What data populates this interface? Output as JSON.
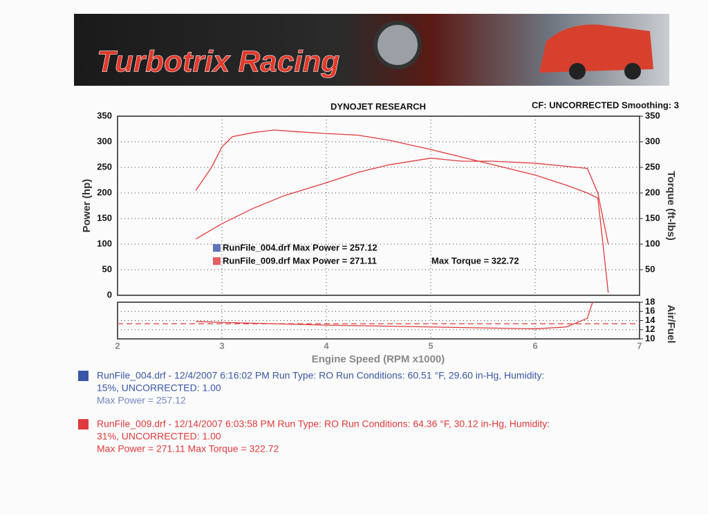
{
  "banner": {
    "title": "Turbotrix Racing"
  },
  "chart_data": [
    {
      "type": "line",
      "title": "DYNOJET RESEARCH",
      "subtitle": "CF: UNCORRECTED  Smoothing: 3",
      "ylabel": "Power (hp)",
      "y2label": "Torque (ft-lbs)",
      "xlim": [
        2,
        7
      ],
      "xticks": [
        2,
        3,
        4,
        5,
        6,
        7
      ],
      "ylim": [
        0,
        350
      ],
      "yticks": [
        0,
        50,
        100,
        150,
        200,
        250,
        300,
        350
      ],
      "y2lim": [
        0,
        350
      ],
      "y2ticks": [
        50,
        100,
        150,
        200,
        250,
        300,
        350
      ],
      "grid": true,
      "series": [
        {
          "color": "#e0393b",
          "x": [
            2.75,
            3.0,
            3.3,
            3.6,
            4.0,
            4.3,
            4.6,
            5.0,
            5.3,
            5.6,
            6.0,
            6.3,
            6.5,
            6.6,
            6.7
          ],
          "values": [
            110,
            140,
            170,
            195,
            220,
            240,
            255,
            268,
            262,
            262,
            258,
            252,
            248,
            200,
            100
          ]
        },
        {
          "color": "#e0393b",
          "axis": "y2",
          "x": [
            2.75,
            2.9,
            3.0,
            3.1,
            3.3,
            3.5,
            3.7,
            4.0,
            4.3,
            4.6,
            5.0,
            5.3,
            5.6,
            6.0,
            6.3,
            6.5,
            6.6,
            6.65,
            6.7
          ],
          "values": [
            205,
            250,
            290,
            310,
            318,
            323,
            320,
            316,
            313,
            303,
            285,
            270,
            255,
            235,
            215,
            200,
            190,
            100,
            5
          ]
        }
      ],
      "annotations": [
        {
          "text": "RunFile_004.drf Max Power = 257.12",
          "color": "#3a56a8"
        },
        {
          "text": "RunFile_009.drf Max Power = 271.11",
          "color": "#e0393b"
        },
        {
          "text": "Max Torque = 322.72",
          "color": "#e0393b"
        }
      ]
    },
    {
      "type": "line",
      "xlabel": "Engine Speed (RPM x1000)",
      "y2label": "Air/Fuel",
      "xlim": [
        2,
        7
      ],
      "xticks": [
        2,
        3,
        4,
        5,
        6,
        7
      ],
      "y2lim": [
        10,
        18
      ],
      "y2ticks": [
        10,
        12,
        14,
        16,
        18
      ],
      "grid": true,
      "series": [
        {
          "color": "#e0393b",
          "dashed": true,
          "x": [
            2,
            7
          ],
          "values": [
            13.3,
            13.3
          ]
        },
        {
          "color": "#e0393b",
          "x": [
            2.75,
            3.0,
            3.5,
            4.0,
            5.0,
            6.0,
            6.3,
            6.5,
            6.55
          ],
          "values": [
            13.8,
            13.6,
            13.3,
            13.0,
            12.6,
            12.2,
            12.6,
            14.5,
            18
          ]
        }
      ]
    }
  ],
  "notes": [
    {
      "color": "#3a56a8",
      "lines": [
        "RunFile_004.drf - 12/4/2007 6:16:02 PM  Run Type: RO  Run Conditions: 60.51 °F, 29.60 in-Hg,  Humidity:",
        "15%, UNCORRECTED: 1.00",
        "Max Power = 257.12"
      ]
    },
    {
      "color": "#e0393b",
      "lines": [
        "RunFile_009.drf - 12/14/2007 6:03:58 PM  Run Type: RO  Run Conditions: 64.36 °F, 30.12 in-Hg,  Humidity:",
        "31%, UNCORRECTED: 1.00",
        "Max Power = 271.11  Max Torque = 322.72"
      ]
    }
  ]
}
